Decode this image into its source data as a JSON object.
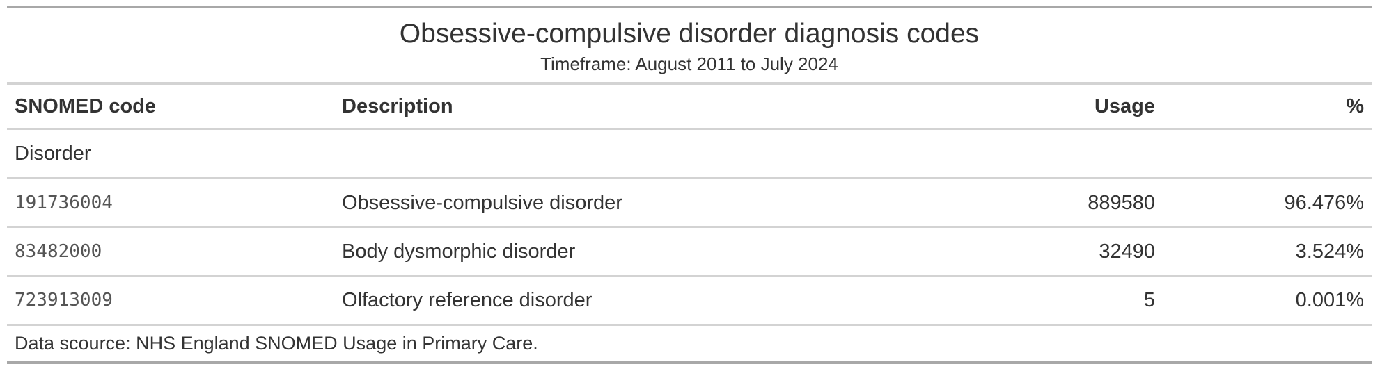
{
  "title": "Obsessive-compulsive disorder diagnosis codes",
  "subtitle": "Timeframe: August 2011 to July 2024",
  "columns": {
    "code": "SNOMED code",
    "description": "Description",
    "usage": "Usage",
    "percent": "%"
  },
  "group": "Disorder",
  "rows": [
    {
      "code": "191736004",
      "description": "Obsessive-compulsive disorder",
      "usage": "889580",
      "percent": "96.476%"
    },
    {
      "code": "83482000",
      "description": "Body dysmorphic disorder",
      "usage": "32490",
      "percent": "3.524%"
    },
    {
      "code": "723913009",
      "description": "Olfactory reference disorder",
      "usage": "5",
      "percent": "0.001%"
    }
  ],
  "footer": "Data scource: NHS England SNOMED Usage in Primary Care."
}
